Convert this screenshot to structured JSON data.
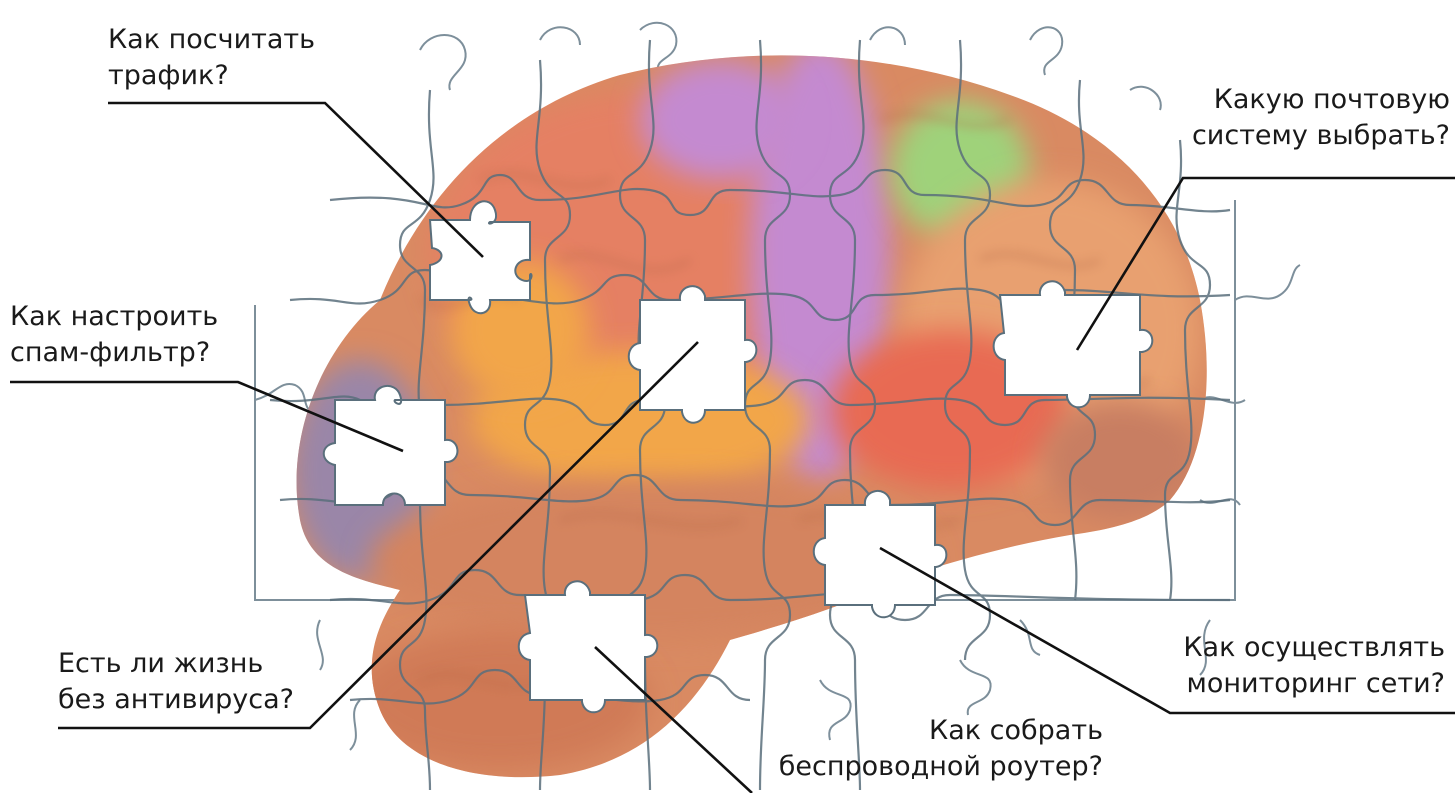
{
  "diagram": {
    "callouts": [
      {
        "id": "traffic",
        "lines": [
          "Как посчитать",
          "трафик?"
        ]
      },
      {
        "id": "spam",
        "lines": [
          "Как настроить",
          "спам-фильтр?"
        ]
      },
      {
        "id": "antivirus",
        "lines": [
          "Есть ли жизнь",
          "без антивируса?"
        ]
      },
      {
        "id": "mail",
        "lines": [
          "Какую почтовую",
          "систему выбрать?"
        ]
      },
      {
        "id": "monitoring",
        "lines": [
          "Как осуществлять",
          "мониторинг сети?"
        ]
      },
      {
        "id": "router",
        "lines": [
          "Как собрать",
          "беспроводной роутер?"
        ]
      }
    ],
    "image": {
      "subject": "brain-puzzle",
      "missing_pieces": 6
    },
    "colors": {
      "brain_base": "#d98a62",
      "purple_region": "#c48ad0",
      "green_region": "#9fd27a",
      "orange_region": "#f2a64a",
      "red_region": "#e86a52",
      "puzzle_line": "#5a6f7c",
      "text": "#1a1a1a",
      "leader": "#111111"
    }
  }
}
